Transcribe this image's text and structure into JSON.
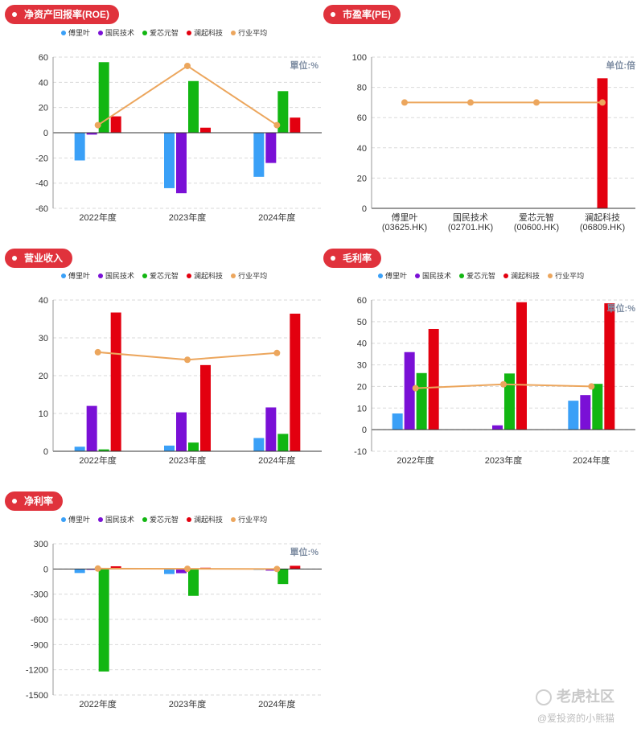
{
  "legend": [
    "傅里叶",
    "国民技术",
    "爱芯元智",
    "澜起科技",
    "行业平均"
  ],
  "colors": {
    "series": [
      "#3aa0f7",
      "#7a10d6",
      "#12b612",
      "#e3000f"
    ],
    "avg": "#eca65d",
    "pill": "#e0323c",
    "unit": "#7f8ea3"
  },
  "panels": [
    {
      "id": "roe",
      "title": "净资产回报率(ROE)",
      "unit": "單位:%",
      "chart_data": {
        "type": "bar",
        "categories": [
          "2022年度",
          "2023年度",
          "2024年度"
        ],
        "series": [
          {
            "name": "傅里叶",
            "values": [
              -22,
              -44,
              -35
            ]
          },
          {
            "name": "国民技术",
            "values": [
              -1.5,
              -48,
              -24
            ]
          },
          {
            "name": "爱芯元智",
            "values": [
              56,
              41,
              33
            ]
          },
          {
            "name": "澜起科技",
            "values": [
              13,
              4,
              12
            ]
          }
        ],
        "line": {
          "name": "行业平均",
          "values": [
            6,
            53,
            6
          ]
        },
        "yticks": [
          -60,
          -40,
          -20,
          0,
          20,
          40,
          60
        ],
        "ylim": [
          -60,
          60
        ]
      }
    },
    {
      "id": "pe",
      "title": "市盈率(PE)",
      "unit": "单位:倍",
      "chart_data": {
        "type": "bar",
        "categories": [
          "傅里叶\n(03625.HK)",
          "国民技术\n(02701.HK)",
          "爱芯元智\n(00600.HK)",
          "澜起科技\n(06809.HK)"
        ],
        "series": [
          {
            "name": "PE",
            "values": [
              0,
              0,
              0,
              86
            ]
          }
        ],
        "line": {
          "name": "行业平均",
          "values": [
            70,
            70,
            70,
            70
          ]
        },
        "yticks": [
          0,
          20,
          40,
          60,
          80,
          100
        ],
        "ylim": [
          0,
          100
        ]
      }
    },
    {
      "id": "revenue",
      "title": "营业收入",
      "unit": "",
      "chart_data": {
        "type": "bar",
        "categories": [
          "2022年度",
          "2023年度",
          "2024年度"
        ],
        "series": [
          {
            "name": "傅里叶",
            "values": [
              1.2,
              1.5,
              3.5
            ]
          },
          {
            "name": "国民技术",
            "values": [
              12,
              10.3,
              11.6
            ]
          },
          {
            "name": "爱芯元智",
            "values": [
              0.5,
              2.3,
              4.6
            ]
          },
          {
            "name": "澜起科技",
            "values": [
              36.7,
              22.8,
              36.4
            ]
          }
        ],
        "line": {
          "name": "行业平均",
          "values": [
            26.2,
            24.2,
            26
          ]
        },
        "yticks": [
          0,
          10,
          20,
          30,
          40
        ],
        "ylim": [
          0,
          40
        ]
      }
    },
    {
      "id": "gross",
      "title": "毛利率",
      "unit": "單位:%",
      "chart_data": {
        "type": "bar",
        "categories": [
          "2022年度",
          "2023年度",
          "2024年度"
        ],
        "series": [
          {
            "name": "傅里叶",
            "values": [
              7.5,
              0,
              13.4
            ]
          },
          {
            "name": "国民技术",
            "values": [
              35.9,
              2,
              16
            ]
          },
          {
            "name": "爱芯元智",
            "values": [
              26.2,
              26,
              21.2
            ]
          },
          {
            "name": "澜起科技",
            "values": [
              46.6,
              59,
              58.5
            ]
          }
        ],
        "line": {
          "name": "行业平均",
          "values": [
            19.2,
            21,
            20
          ]
        },
        "yticks": [
          -10,
          0,
          10,
          20,
          30,
          40,
          50,
          60
        ],
        "ylim": [
          -10,
          60
        ]
      }
    },
    {
      "id": "net",
      "title": "净利率",
      "unit": "單位:%",
      "chart_data": {
        "type": "bar",
        "categories": [
          "2022年度",
          "2023年度",
          "2024年度"
        ],
        "series": [
          {
            "name": "傅里叶",
            "values": [
              -48,
              -60,
              -12
            ]
          },
          {
            "name": "国民技术",
            "values": [
              -2,
              -50,
              -20
            ]
          },
          {
            "name": "爱芯元智",
            "values": [
              -1220,
              -320,
              -180
            ]
          },
          {
            "name": "澜起科技",
            "values": [
              32,
              15,
              38
            ]
          }
        ],
        "line": {
          "name": "行业平均",
          "values": [
            5,
            2,
            0
          ]
        },
        "yticks": [
          -1500,
          -1200,
          -900,
          -600,
          -300,
          0,
          300
        ],
        "ylim": [
          -1500,
          300
        ]
      }
    }
  ],
  "watermark": {
    "brand": "老虎社区",
    "author": "@爱投资的小熊猫"
  }
}
